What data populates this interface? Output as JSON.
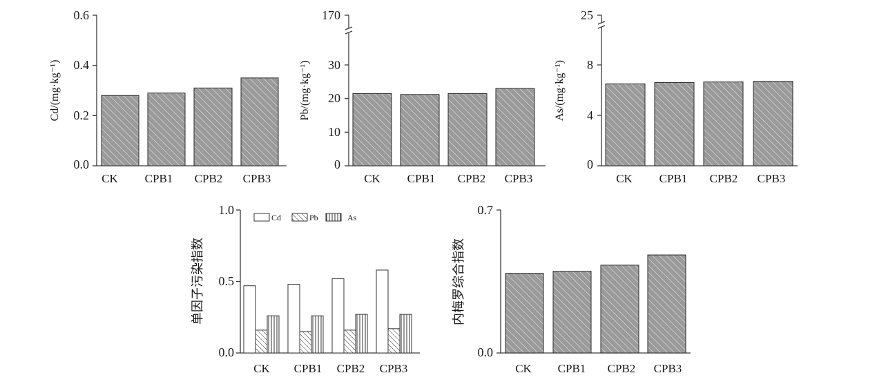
{
  "colors": {
    "bar_fill": "#9a9a9a",
    "bar_stroke": "#2a2a2a",
    "hatch": "#d8d8d8",
    "axis": "#3a3a3a",
    "text": "#1a1a1a"
  },
  "chart_data": [
    {
      "id": "cd",
      "type": "bar",
      "categories": [
        "CK",
        "CPB1",
        "CPB2",
        "CPB3"
      ],
      "values": [
        0.28,
        0.29,
        0.31,
        0.35
      ],
      "ylabel": "Cd/(mg·kg⁻¹)",
      "ylim": [
        0,
        0.6
      ],
      "ticks": [
        "0.0",
        "0.2",
        "0.4",
        "0.6"
      ]
    },
    {
      "id": "pb",
      "type": "bar",
      "categories": [
        "CK",
        "CPB1",
        "CPB2",
        "CPB3"
      ],
      "values": [
        21.5,
        21.2,
        21.5,
        23.0
      ],
      "ylabel": "Pb/(mg·kg⁻¹)",
      "ylim": [
        0,
        30
      ],
      "axis_break": true,
      "break_top_value": 170,
      "ticks": [
        "0",
        "10",
        "20",
        "30",
        "170"
      ]
    },
    {
      "id": "as",
      "type": "bar",
      "categories": [
        "CK",
        "CPB1",
        "CPB2",
        "CPB3"
      ],
      "values": [
        6.5,
        6.6,
        6.65,
        6.7
      ],
      "ylabel": "As/(mg·kg⁻¹)",
      "ylim": [
        0,
        8
      ],
      "axis_break": true,
      "break_top_value": 25,
      "ticks": [
        "0",
        "4",
        "8",
        "25"
      ]
    },
    {
      "id": "single",
      "type": "bar",
      "categories": [
        "CK",
        "CPB1",
        "CPB2",
        "CPB3"
      ],
      "series": [
        {
          "name": "Cd",
          "pattern": "open",
          "values": [
            0.47,
            0.48,
            0.52,
            0.58
          ]
        },
        {
          "name": "Pb",
          "pattern": "diagonal",
          "values": [
            0.16,
            0.15,
            0.16,
            0.17
          ]
        },
        {
          "name": "As",
          "pattern": "vertical",
          "values": [
            0.26,
            0.26,
            0.27,
            0.27
          ]
        }
      ],
      "ylabel": "单因子污染指数",
      "ylim": [
        0,
        1.0
      ],
      "ticks": [
        "0.0",
        "0.5",
        "1.0"
      ],
      "legend": "top"
    },
    {
      "id": "nemerow",
      "type": "bar",
      "categories": [
        "CK",
        "CPB1",
        "CPB2",
        "CPB3"
      ],
      "values": [
        0.39,
        0.4,
        0.43,
        0.48
      ],
      "ylabel": "内梅罗综合指数",
      "ylim": [
        0,
        0.7
      ],
      "ticks": [
        "0.0",
        "0.7"
      ]
    }
  ]
}
